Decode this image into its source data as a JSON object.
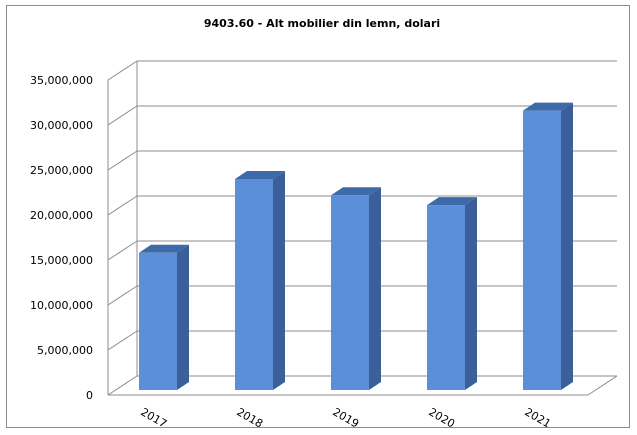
{
  "chart_data": {
    "type": "bar",
    "title": "9403.60 - Alt mobilier din lemn, dolari",
    "xlabel": "",
    "ylabel": "",
    "categories": [
      "2017",
      "2018",
      "2019",
      "2020",
      "2021"
    ],
    "values": [
      15800000,
      24000000,
      22200000,
      21100000,
      31600000
    ],
    "ylim": [
      0,
      35000000
    ],
    "yticks": [
      0,
      5000000,
      10000000,
      15000000,
      20000000,
      25000000,
      30000000,
      35000000
    ],
    "ytick_labels": [
      "0",
      "5,000,000",
      "10,000,000",
      "15,000,000",
      "20,000,000",
      "25,000,000",
      "30,000,000",
      "35,000,000"
    ],
    "grid": true,
    "legend": "none",
    "three_d": true,
    "colors": {
      "bar_front": "#5b8fd9",
      "bar_side": "#3a5f99",
      "bar_top": "#3d6aa8",
      "grid": "#8c8c8c"
    }
  }
}
